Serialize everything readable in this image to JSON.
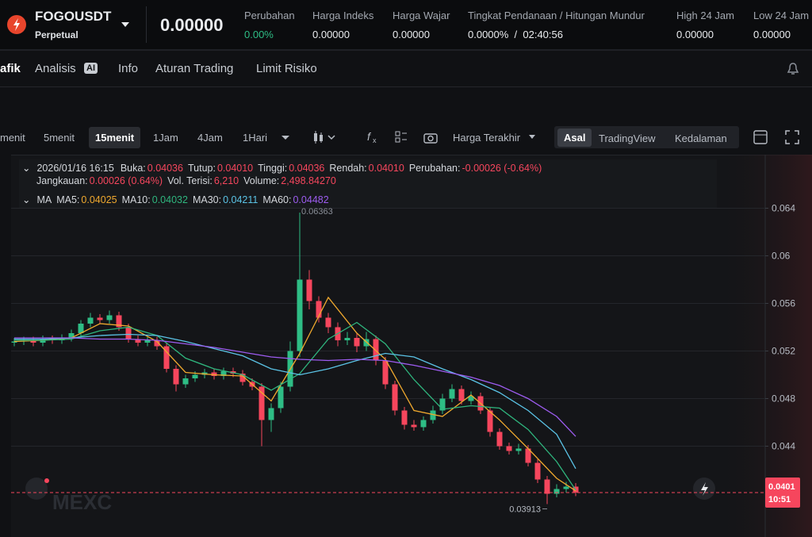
{
  "header": {
    "symbol": "FOGOUSDT",
    "contract": "Perpetual",
    "last_price": "0.00000",
    "stats": [
      {
        "label": "Perubahan",
        "value": "0.00%"
      },
      {
        "label": "Harga Indeks",
        "value": "0.00000"
      },
      {
        "label": "Harga Wajar",
        "value": "0.00000"
      },
      {
        "label": "Tingkat Pendanaan / Hitungan Mundur",
        "value": "0.0000%  /  02:40:56"
      },
      {
        "label": "High 24 Jam",
        "value": "0.00000"
      },
      {
        "label": "Low 24 Jam",
        "value": "0.00000"
      }
    ]
  },
  "tabs": [
    "afik",
    "Analisis",
    "AI",
    "Info",
    "Aturan Trading",
    "Limit Risiko"
  ],
  "toolbar": {
    "intervals": [
      "menit",
      "5menit",
      "15menit",
      "1Jam",
      "4Jam",
      "1Hari"
    ],
    "price_type": "Harga Terakhir",
    "views": [
      "Asal",
      "TradingView",
      "Kedalaman"
    ]
  },
  "candle_info": {
    "line1": [
      {
        "label": "2026/01/16 16:15"
      },
      {
        "label": "Buka:",
        "value": "0.04036"
      },
      {
        "label": "Tutup:",
        "value": "0.04010"
      },
      {
        "label": "Tinggi:",
        "value": "0.04036"
      },
      {
        "label": "Rendah:",
        "value": "0.04010"
      },
      {
        "label": "Perubahan:",
        "value": "-0.00026 (-0.64%)"
      }
    ],
    "line2": [
      {
        "label": "Jangkauan:",
        "value": "0.00026 (0.64%)"
      },
      {
        "label": "Vol. Terisi:",
        "value": "6,210"
      },
      {
        "label": "Volume:",
        "value": "2,498.84270"
      }
    ],
    "ma_title": "MA",
    "ma_values": [
      "0.04025",
      "0.04032",
      "0.04211",
      "0.04482"
    ]
  },
  "watermark": "MEXC",
  "chart_data": {
    "type": "candlestick",
    "candles": [
      [
        0.0527,
        0.0531,
        0.0524,
        0.0528
      ],
      [
        0.0528,
        0.0532,
        0.0525,
        0.0529
      ],
      [
        0.0529,
        0.0532,
        0.0524,
        0.0527
      ],
      [
        0.0527,
        0.0533,
        0.0524,
        0.053
      ],
      [
        0.053,
        0.0533,
        0.0526,
        0.0529
      ],
      [
        0.0529,
        0.0534,
        0.0526,
        0.0531
      ],
      [
        0.0531,
        0.0538,
        0.0528,
        0.0535
      ],
      [
        0.0535,
        0.0546,
        0.0532,
        0.0543
      ],
      [
        0.0543,
        0.0552,
        0.054,
        0.0548
      ],
      [
        0.0548,
        0.0551,
        0.0543,
        0.0546
      ],
      [
        0.0546,
        0.0554,
        0.0543,
        0.055
      ],
      [
        0.055,
        0.0553,
        0.0537,
        0.054
      ],
      [
        0.054,
        0.0543,
        0.0527,
        0.053
      ],
      [
        0.053,
        0.0533,
        0.0524,
        0.0527
      ],
      [
        0.0527,
        0.0532,
        0.0524,
        0.0529
      ],
      [
        0.0529,
        0.0532,
        0.0521,
        0.0524
      ],
      [
        0.0524,
        0.0527,
        0.0502,
        0.0505
      ],
      [
        0.0505,
        0.0508,
        0.0486,
        0.0492
      ],
      [
        0.0492,
        0.05,
        0.0489,
        0.0497
      ],
      [
        0.0497,
        0.0503,
        0.0494,
        0.05
      ],
      [
        0.05,
        0.0505,
        0.0497,
        0.0502
      ],
      [
        0.0502,
        0.0505,
        0.0496,
        0.0499
      ],
      [
        0.0499,
        0.0506,
        0.0496,
        0.0503
      ],
      [
        0.0503,
        0.0506,
        0.0498,
        0.0501
      ],
      [
        0.0501,
        0.0504,
        0.0491,
        0.0494
      ],
      [
        0.0494,
        0.0497,
        0.0487,
        0.049
      ],
      [
        0.049,
        0.0493,
        0.044,
        0.0462
      ],
      [
        0.0462,
        0.0476,
        0.0452,
        0.0472
      ],
      [
        0.0472,
        0.0494,
        0.0468,
        0.049
      ],
      [
        0.049,
        0.0528,
        0.0486,
        0.052
      ],
      [
        0.052,
        0.06363,
        0.0515,
        0.058
      ],
      [
        0.058,
        0.0588,
        0.0555,
        0.0562
      ],
      [
        0.0562,
        0.0566,
        0.0544,
        0.0548
      ],
      [
        0.0548,
        0.0552,
        0.0535,
        0.054
      ],
      [
        0.054,
        0.0544,
        0.0524,
        0.0529
      ],
      [
        0.0529,
        0.0536,
        0.0525,
        0.0531
      ],
      [
        0.0531,
        0.0535,
        0.0519,
        0.0524
      ],
      [
        0.0524,
        0.0536,
        0.052,
        0.053
      ],
      [
        0.053,
        0.0533,
        0.0508,
        0.0512
      ],
      [
        0.0512,
        0.0515,
        0.0488,
        0.0492
      ],
      [
        0.0492,
        0.0495,
        0.0466,
        0.047
      ],
      [
        0.047,
        0.0473,
        0.0454,
        0.0458
      ],
      [
        0.0458,
        0.0462,
        0.0453,
        0.0456
      ],
      [
        0.0456,
        0.0465,
        0.0453,
        0.0462
      ],
      [
        0.0462,
        0.0474,
        0.0459,
        0.047
      ],
      [
        0.047,
        0.0484,
        0.0467,
        0.048
      ],
      [
        0.048,
        0.0492,
        0.0477,
        0.0488
      ],
      [
        0.0488,
        0.0491,
        0.0475,
        0.0478
      ],
      [
        0.0478,
        0.0486,
        0.0475,
        0.0482
      ],
      [
        0.0482,
        0.0485,
        0.0467,
        0.047
      ],
      [
        0.047,
        0.0473,
        0.0448,
        0.0452
      ],
      [
        0.0452,
        0.0455,
        0.0437,
        0.044
      ],
      [
        0.044,
        0.0443,
        0.0433,
        0.0436
      ],
      [
        0.0436,
        0.0442,
        0.0433,
        0.0438
      ],
      [
        0.0438,
        0.0441,
        0.0423,
        0.0426
      ],
      [
        0.0426,
        0.0429,
        0.0409,
        0.0412
      ],
      [
        0.0412,
        0.0415,
        0.03913,
        0.04
      ],
      [
        0.04,
        0.0408,
        0.0397,
        0.0404
      ],
      [
        0.0404,
        0.041,
        0.0401,
        0.0406
      ],
      [
        0.0406,
        0.0409,
        0.0398,
        0.0401
      ]
    ],
    "up_color": "#2ebd85",
    "down_color": "#f6465d",
    "ma_x": [
      0,
      3,
      6,
      9,
      12,
      15,
      18,
      21,
      24,
      27,
      30,
      33,
      36,
      39,
      42,
      45,
      48,
      51,
      54,
      57,
      59
    ],
    "series": [
      {
        "name": "MA5:",
        "color": "#f0a92e",
        "values": [
          0.0528,
          0.0529,
          0.0531,
          0.0543,
          0.0541,
          0.0528,
          0.0502,
          0.05,
          0.0499,
          0.0478,
          0.0518,
          0.0565,
          0.0535,
          0.0513,
          0.047,
          0.0465,
          0.0483,
          0.0462,
          0.0438,
          0.0413,
          0.04025
        ]
      },
      {
        "name": "MA10:",
        "color": "#2fb67e",
        "values": [
          0.0529,
          0.0529,
          0.053,
          0.0537,
          0.054,
          0.0533,
          0.0514,
          0.0505,
          0.05,
          0.0487,
          0.0501,
          0.053,
          0.0544,
          0.0526,
          0.0496,
          0.0471,
          0.0474,
          0.0472,
          0.0454,
          0.0427,
          0.04032
        ]
      },
      {
        "name": "MA30:",
        "color": "#5bc3e6",
        "values": [
          0.053,
          0.053,
          0.0531,
          0.0533,
          0.0534,
          0.0533,
          0.0528,
          0.0522,
          0.0516,
          0.0505,
          0.05,
          0.0505,
          0.0512,
          0.0518,
          0.0515,
          0.0505,
          0.0496,
          0.0485,
          0.047,
          0.045,
          0.04211
        ]
      },
      {
        "name": "MA60:",
        "color": "#9d5cf0",
        "values": [
          0.0531,
          0.0531,
          0.0531,
          0.053,
          0.053,
          0.0529,
          0.0526,
          0.0523,
          0.0519,
          0.0515,
          0.0513,
          0.0512,
          0.0513,
          0.0512,
          0.0508,
          0.0503,
          0.0498,
          0.0491,
          0.048,
          0.0465,
          0.04482
        ]
      }
    ],
    "ylim": [
      0.0375,
      0.0685
    ],
    "yticks": [
      0.044,
      0.048,
      0.052,
      0.056,
      0.06,
      0.064
    ],
    "grid": true,
    "max_label": 0.06363,
    "min_label": 0.03913,
    "last_price": 0.0401,
    "countdown": "10:51"
  }
}
